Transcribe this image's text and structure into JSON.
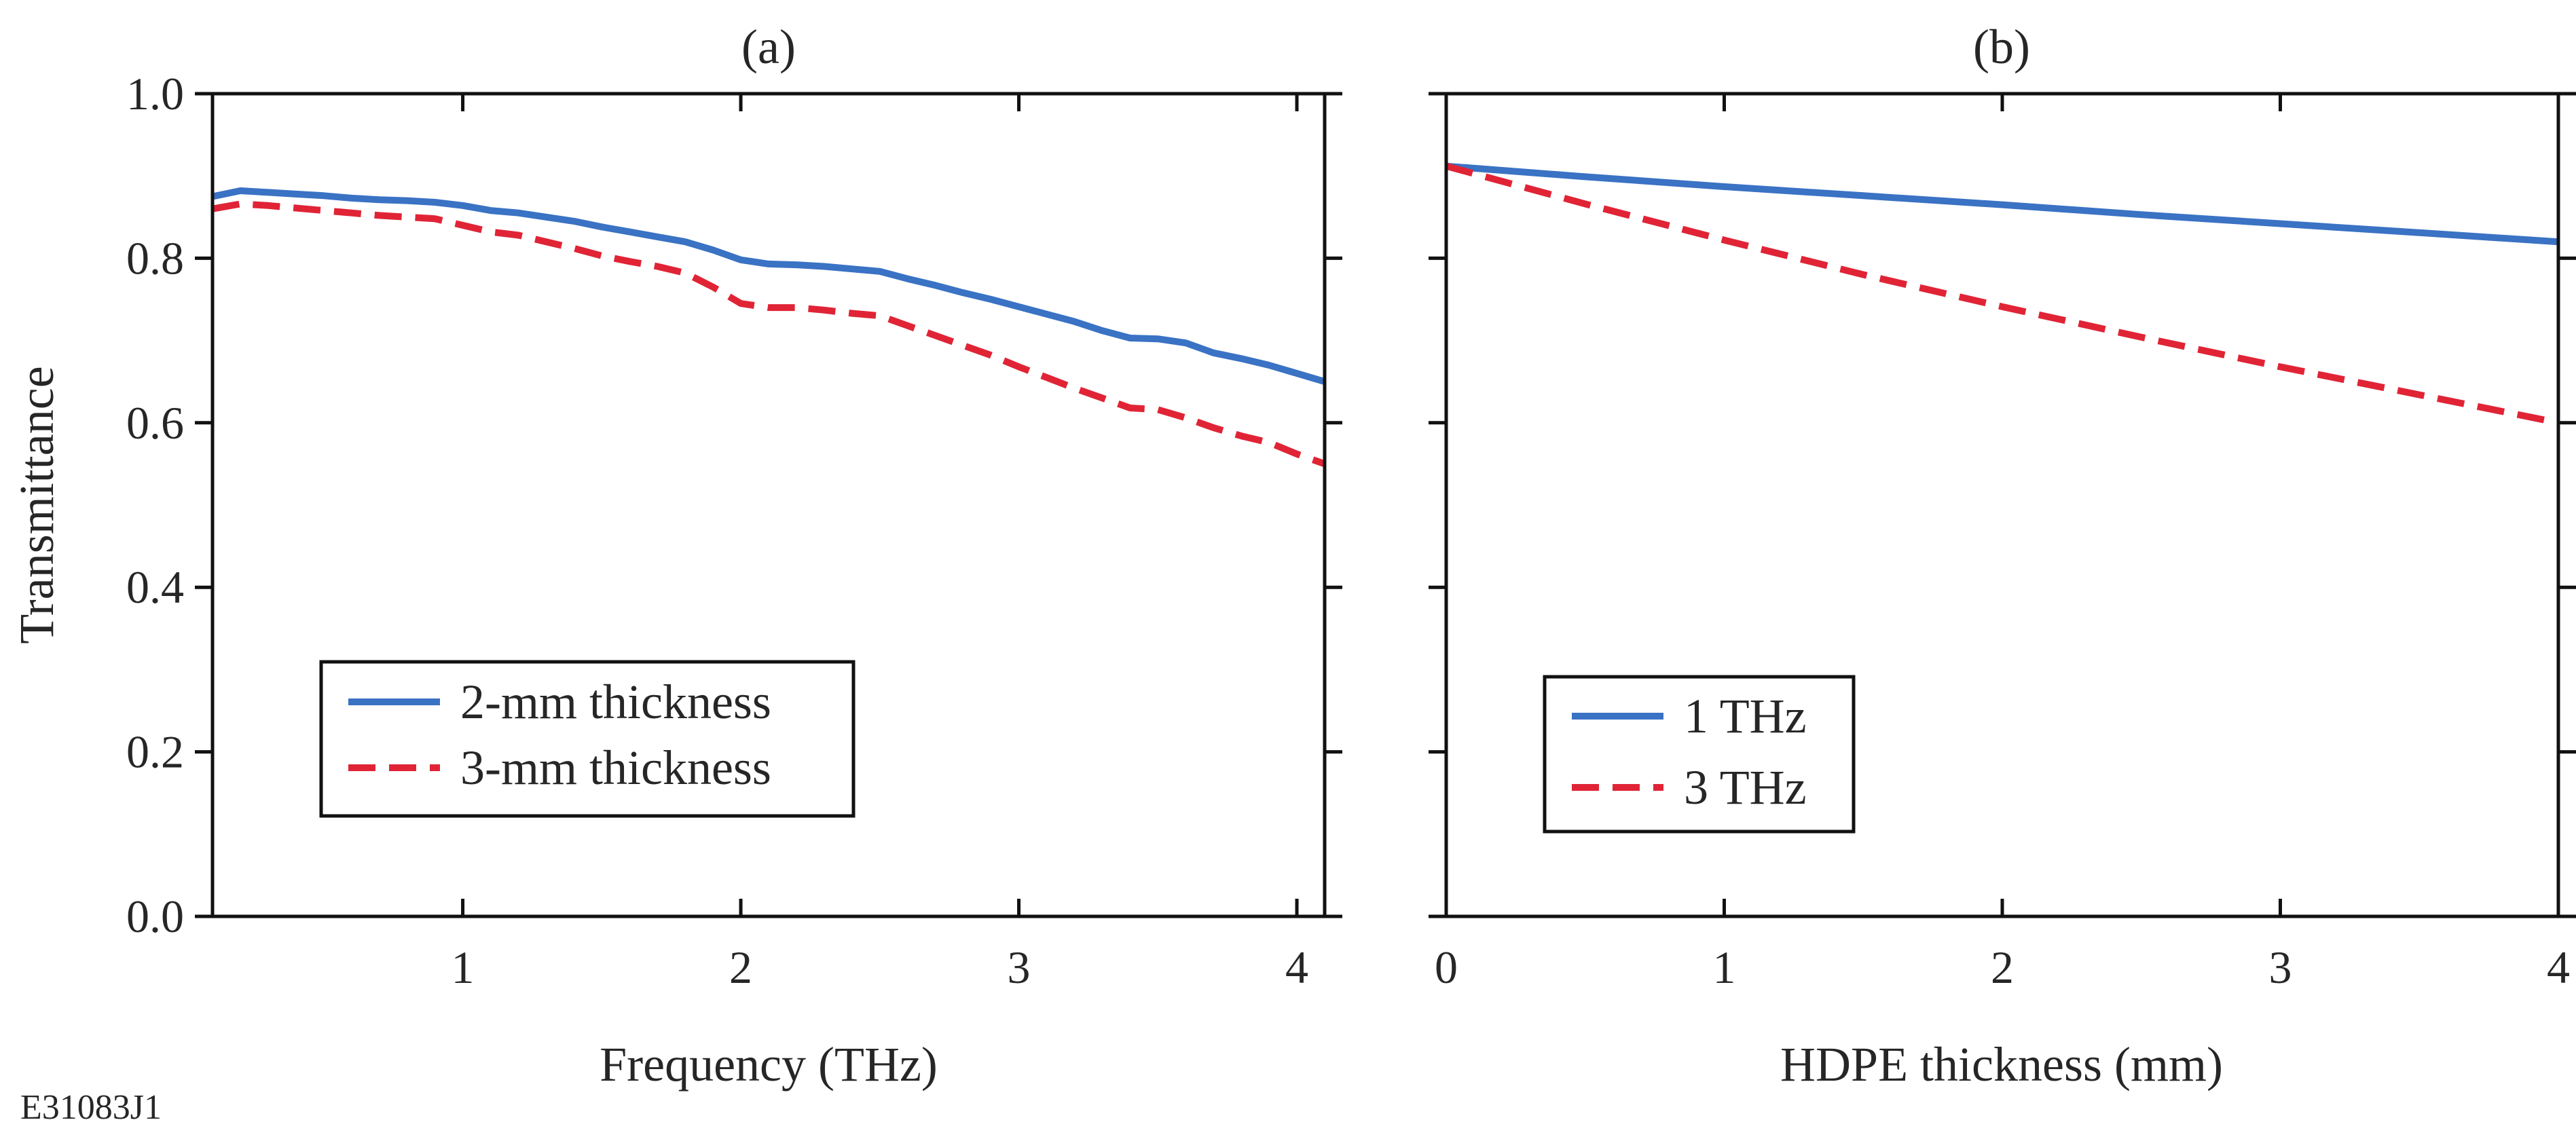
{
  "figure_id": "E31083J1",
  "colors": {
    "blue": "#3a72c4",
    "red": "#e02436",
    "axis": "#111111",
    "text": "#262626"
  },
  "chart_data": [
    {
      "type": "line",
      "panel": "(a)",
      "title": "(a)",
      "xlabel": "Frequency (THz)",
      "ylabel": "Transmittance",
      "xlim": [
        0.1,
        4.1
      ],
      "ylim": [
        0.0,
        1.0
      ],
      "x_ticks": [
        1,
        2,
        3,
        4
      ],
      "x_tick_labels": [
        "1",
        "2",
        "3",
        "4"
      ],
      "y_ticks": [
        0.0,
        0.2,
        0.4,
        0.6,
        0.8,
        1.0
      ],
      "y_tick_labels": [
        "0.0",
        "0.2",
        "0.4",
        "0.6",
        "0.8",
        "1.0"
      ],
      "grid": false,
      "legend_position": "lower-left",
      "series": [
        {
          "name": "2-mm thickness",
          "color": "#3a72c4",
          "style": "solid",
          "x": [
            0.1,
            0.2,
            0.3,
            0.4,
            0.5,
            0.6,
            0.7,
            0.8,
            0.9,
            1.0,
            1.1,
            1.2,
            1.3,
            1.4,
            1.5,
            1.6,
            1.7,
            1.8,
            1.9,
            2.0,
            2.1,
            2.2,
            2.3,
            2.4,
            2.5,
            2.6,
            2.7,
            2.8,
            2.9,
            3.0,
            3.1,
            3.2,
            3.3,
            3.4,
            3.5,
            3.6,
            3.7,
            3.8,
            3.9,
            4.0,
            4.1
          ],
          "y": [
            0.875,
            0.882,
            0.88,
            0.878,
            0.876,
            0.873,
            0.871,
            0.87,
            0.868,
            0.864,
            0.858,
            0.855,
            0.85,
            0.845,
            0.838,
            0.832,
            0.826,
            0.82,
            0.81,
            0.798,
            0.793,
            0.792,
            0.79,
            0.787,
            0.784,
            0.775,
            0.767,
            0.758,
            0.75,
            0.741,
            0.732,
            0.723,
            0.712,
            0.703,
            0.702,
            0.697,
            0.685,
            0.678,
            0.67,
            0.66,
            0.65
          ]
        },
        {
          "name": "3-mm thickness",
          "color": "#e02436",
          "style": "dashed",
          "x": [
            0.1,
            0.2,
            0.3,
            0.4,
            0.5,
            0.6,
            0.7,
            0.8,
            0.9,
            1.0,
            1.1,
            1.2,
            1.3,
            1.4,
            1.5,
            1.6,
            1.7,
            1.8,
            1.9,
            2.0,
            2.1,
            2.2,
            2.3,
            2.4,
            2.5,
            2.6,
            2.7,
            2.8,
            2.9,
            3.0,
            3.1,
            3.2,
            3.3,
            3.4,
            3.5,
            3.6,
            3.7,
            3.8,
            3.9,
            4.0,
            4.1
          ],
          "y": [
            0.86,
            0.866,
            0.864,
            0.861,
            0.858,
            0.855,
            0.852,
            0.85,
            0.848,
            0.84,
            0.832,
            0.828,
            0.82,
            0.812,
            0.803,
            0.796,
            0.79,
            0.782,
            0.765,
            0.745,
            0.74,
            0.74,
            0.737,
            0.733,
            0.73,
            0.718,
            0.706,
            0.694,
            0.682,
            0.668,
            0.655,
            0.642,
            0.63,
            0.618,
            0.616,
            0.606,
            0.594,
            0.584,
            0.576,
            0.562,
            0.55
          ]
        }
      ]
    },
    {
      "type": "line",
      "panel": "(b)",
      "title": "(b)",
      "xlabel": "HDPE thickness (mm)",
      "ylabel": "",
      "xlim": [
        0,
        4
      ],
      "ylim": [
        0.0,
        1.0
      ],
      "x_ticks": [
        0,
        1,
        2,
        3,
        4
      ],
      "x_tick_labels": [
        "0",
        "1",
        "2",
        "3",
        "4"
      ],
      "y_ticks": [
        0.0,
        0.2,
        0.4,
        0.6,
        0.8,
        1.0
      ],
      "y_tick_labels": [],
      "grid": false,
      "legend_position": "lower-left",
      "series": [
        {
          "name": "1 THz",
          "color": "#3a72c4",
          "style": "solid",
          "x": [
            0,
            0.5,
            1,
            1.5,
            2,
            2.5,
            3,
            3.5,
            4
          ],
          "y": [
            0.912,
            0.899,
            0.887,
            0.876,
            0.865,
            0.853,
            0.842,
            0.831,
            0.82
          ]
        },
        {
          "name": "3 THz",
          "color": "#e02436",
          "style": "dashed",
          "x": [
            0,
            0.5,
            1,
            1.5,
            2,
            2.5,
            3,
            3.5,
            4
          ],
          "y": [
            0.912,
            0.866,
            0.822,
            0.78,
            0.741,
            0.704,
            0.668,
            0.634,
            0.6
          ]
        }
      ]
    }
  ]
}
